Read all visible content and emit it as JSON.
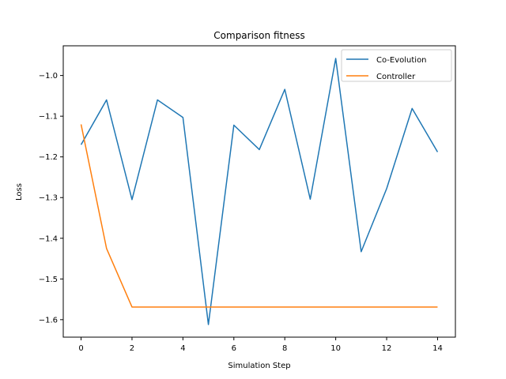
{
  "chart_data": {
    "type": "line",
    "title": "Comparison fitness",
    "xlabel": "Simulation Step",
    "ylabel": "Loss",
    "xlim": [
      -0.7,
      14.7
    ],
    "ylim": [
      -1.643,
      -0.927
    ],
    "xticks": [
      0,
      2,
      4,
      6,
      8,
      10,
      12,
      14
    ],
    "yticks": [
      -1.6,
      -1.5,
      -1.4,
      -1.3,
      -1.2,
      -1.1,
      -1.0
    ],
    "grid": false,
    "legend_position": "top-right",
    "x": [
      0,
      1,
      2,
      3,
      4,
      5,
      6,
      7,
      8,
      9,
      10,
      11,
      12,
      13,
      14
    ],
    "series": [
      {
        "name": "Co-Evolution",
        "color": "#1f77b4",
        "values": [
          -1.17,
          -1.06,
          -1.305,
          -1.06,
          -1.103,
          -1.612,
          -1.122,
          -1.182,
          -1.034,
          -1.304,
          -0.958,
          -1.433,
          -1.278,
          -1.081,
          -1.188
        ]
      },
      {
        "name": "Controller",
        "color": "#ff7f0e",
        "values": [
          -1.12,
          -1.425,
          -1.569,
          -1.569,
          -1.569,
          -1.569,
          -1.569,
          -1.569,
          -1.569,
          -1.569,
          -1.569,
          -1.569,
          -1.569,
          -1.569,
          -1.569
        ]
      }
    ]
  }
}
